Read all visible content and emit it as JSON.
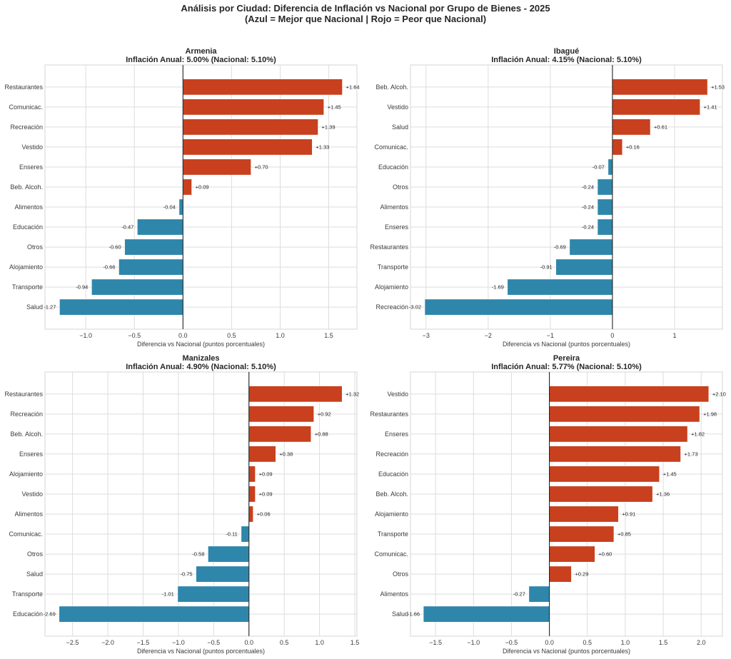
{
  "figure": {
    "title_line1": "Análisis por Ciudad: Diferencia de Inflación vs Nacional por Grupo de Bienes - 2025",
    "title_line2": "(Azul = Mejor que Nacional | Rojo = Peor que Nacional)"
  },
  "colors": {
    "worse": "#c8401e",
    "better": "#2e86ab",
    "grid": "#dddddd",
    "zero_line": "#262626"
  },
  "chart_data": [
    {
      "type": "bar",
      "orientation": "horizontal",
      "city": "Armenia",
      "title": "Armenia",
      "subtitle": "Inflación Anual: 5.00% (Nacional: 5.10%)",
      "xlabel": "Diferencia vs Nacional (puntos porcentuales)",
      "xlim": [
        -1.42,
        1.79
      ],
      "xticks": [
        -1.0,
        -0.5,
        0.0,
        0.5,
        1.0,
        1.5
      ],
      "xtick_labels": [
        "−1.0",
        "−0.5",
        "0.0",
        "0.5",
        "1.0",
        "1.5"
      ],
      "grid": true,
      "categories": [
        "Restaurantes",
        "Comunicac.",
        "Recreación",
        "Vestido",
        "Enseres",
        "Beb. Alcoh.",
        "Alimentos",
        "Educación",
        "Otros",
        "Alojamiento",
        "Transporte",
        "Salud"
      ],
      "values": [
        1.64,
        1.45,
        1.39,
        1.33,
        0.7,
        0.09,
        -0.04,
        -0.47,
        -0.6,
        -0.66,
        -0.94,
        -1.27
      ],
      "labels": [
        "+1.64",
        "+1.45",
        "+1.39",
        "+1.33",
        "+0.70",
        "+0.09",
        "-0.04",
        "-0.47",
        "-0.60",
        "-0.66",
        "-0.94",
        "-1.27"
      ]
    },
    {
      "type": "bar",
      "orientation": "horizontal",
      "city": "Ibagué",
      "title": "Ibagué",
      "subtitle": "Inflación Anual: 4.15% (Nacional: 5.10%)",
      "xlabel": "Diferencia vs Nacional (puntos porcentuales)",
      "xlim": [
        -3.25,
        1.77
      ],
      "xticks": [
        -3,
        -2,
        -1,
        0,
        1
      ],
      "xtick_labels": [
        "−3",
        "−2",
        "−1",
        "0",
        "1"
      ],
      "grid": true,
      "categories": [
        "Beb. Alcoh.",
        "Vestido",
        "Salud",
        "Comunicac.",
        "Educación",
        "Otros",
        "Alimentos",
        "Enseres",
        "Restaurantes",
        "Transporte",
        "Alojamiento",
        "Recreación"
      ],
      "values": [
        1.53,
        1.41,
        0.61,
        0.16,
        -0.07,
        -0.24,
        -0.24,
        -0.24,
        -0.69,
        -0.91,
        -1.69,
        -3.02
      ],
      "labels": [
        "+1.53",
        "+1.41",
        "+0.61",
        "+0.16",
        "-0.07",
        "-0.24",
        "-0.24",
        "-0.24",
        "-0.69",
        "-0.91",
        "-1.69",
        "-3.02"
      ]
    },
    {
      "type": "bar",
      "orientation": "horizontal",
      "city": "Manizales",
      "title": "Manizales",
      "subtitle": "Inflación Anual: 4.90% (Nacional: 5.10%)",
      "xlabel": "Diferencia vs Nacional (puntos porcentuales)",
      "xlim": [
        -2.89,
        1.53
      ],
      "xticks": [
        -2.5,
        -2.0,
        -1.5,
        -1.0,
        -0.5,
        0.0,
        0.5,
        1.0,
        1.5
      ],
      "xtick_labels": [
        "−2.5",
        "−2.0",
        "−1.5",
        "−1.0",
        "−0.5",
        "0.0",
        "0.5",
        "1.0",
        "1.5"
      ],
      "grid": true,
      "categories": [
        "Restaurantes",
        "Recreación",
        "Beb. Alcoh.",
        "Enseres",
        "Alojamiento",
        "Vestido",
        "Alimentos",
        "Comunicac.",
        "Otros",
        "Salud",
        "Transporte",
        "Educación"
      ],
      "values": [
        1.32,
        0.92,
        0.88,
        0.38,
        0.09,
        0.09,
        0.06,
        -0.11,
        -0.58,
        -0.75,
        -1.01,
        -2.69
      ],
      "labels": [
        "+1.32",
        "+0.92",
        "+0.88",
        "+0.38",
        "+0.09",
        "+0.09",
        "+0.06",
        "-0.11",
        "-0.58",
        "-0.75",
        "-1.01",
        "-2.69"
      ]
    },
    {
      "type": "bar",
      "orientation": "horizontal",
      "city": "Pereira",
      "title": "Pereira",
      "subtitle": "Inflación Anual: 5.77% (Nacional: 5.10%)",
      "xlabel": "Diferencia vs Nacional (puntos porcentuales)",
      "xlim": [
        -1.83,
        2.28
      ],
      "xticks": [
        -1.5,
        -1.0,
        -0.5,
        0.0,
        0.5,
        1.0,
        1.5,
        2.0
      ],
      "xtick_labels": [
        "−1.5",
        "−1.0",
        "−0.5",
        "0.0",
        "0.5",
        "1.0",
        "1.5",
        "2.0"
      ],
      "grid": true,
      "categories": [
        "Vestido",
        "Restaurantes",
        "Enseres",
        "Recreación",
        "Educación",
        "Beb. Alcoh.",
        "Alojamiento",
        "Transporte",
        "Comunicac.",
        "Otros",
        "Alimentos",
        "Salud"
      ],
      "values": [
        2.1,
        1.98,
        1.82,
        1.73,
        1.45,
        1.36,
        0.91,
        0.85,
        0.6,
        0.29,
        -0.27,
        -1.66
      ],
      "labels": [
        "+2.10",
        "+1.98",
        "+1.82",
        "+1.73",
        "+1.45",
        "+1.36",
        "+0.91",
        "+0.85",
        "+0.60",
        "+0.29",
        "-0.27",
        "-1.66"
      ]
    }
  ]
}
